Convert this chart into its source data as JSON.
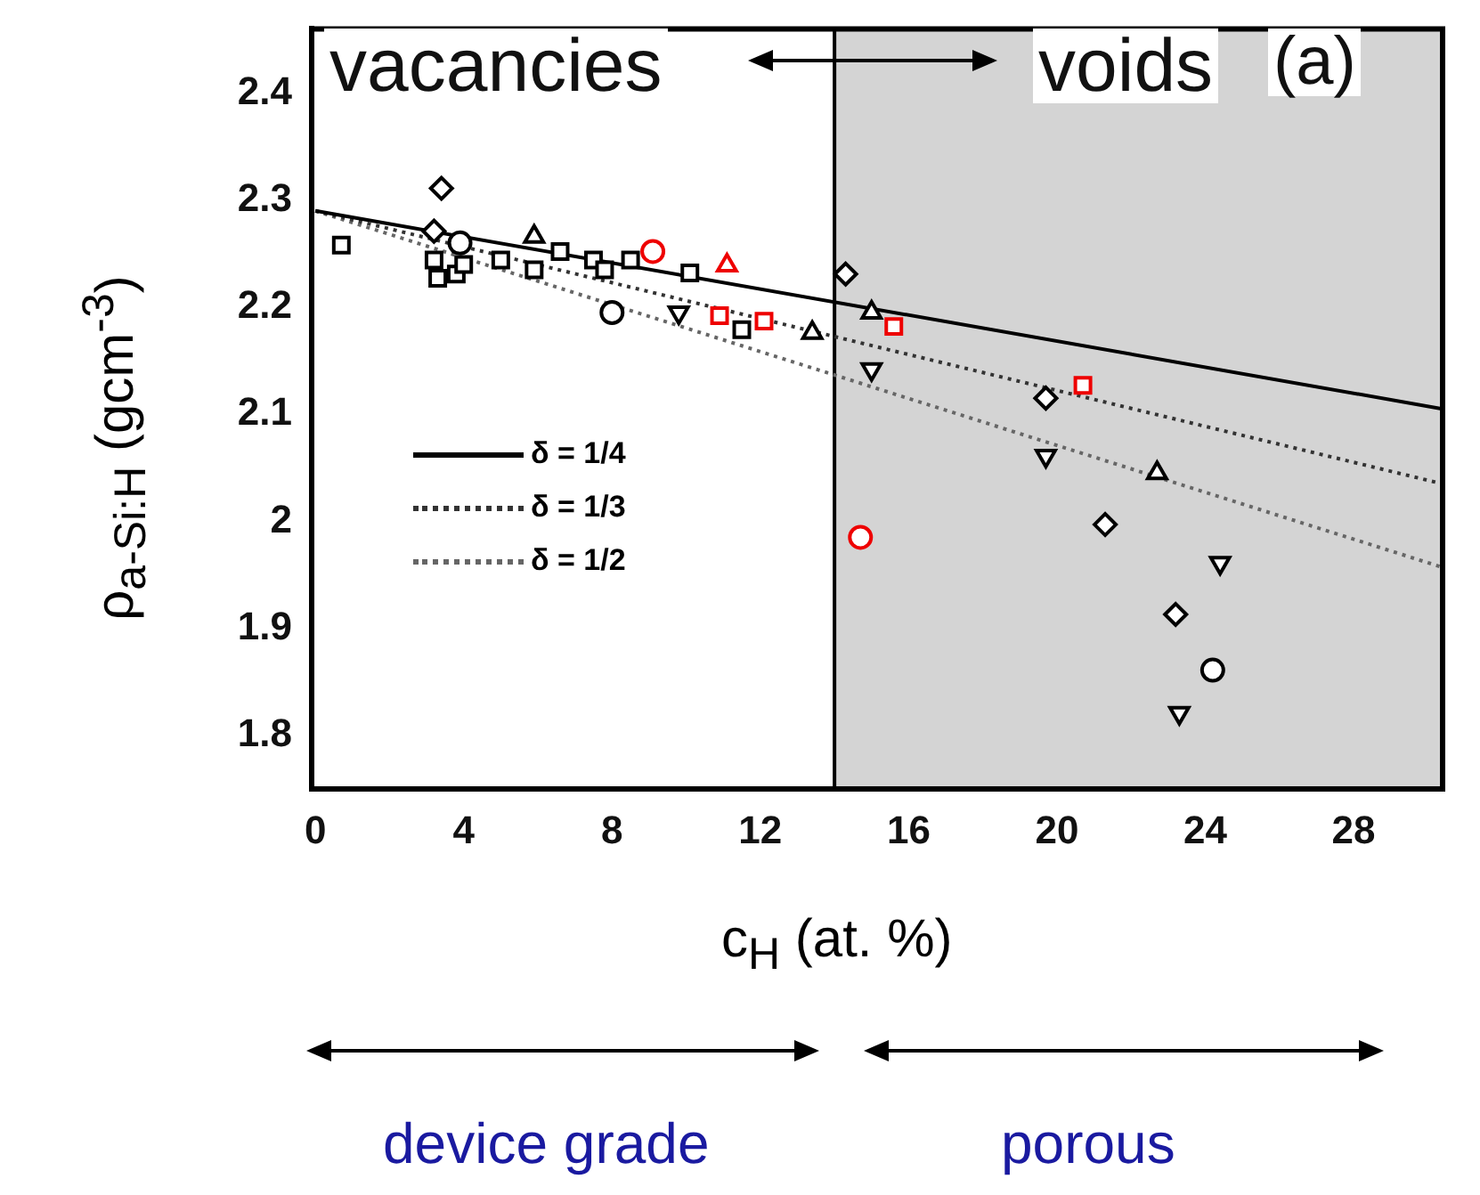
{
  "chart_data": {
    "type": "scatter",
    "xlabel": "c$_{H}$ (at. %)",
    "ylabel": "ρ$_{a-Si:H}$ (gcm$^{-3}$)",
    "xlim": [
      -0.1,
      30.4
    ],
    "ylim": [
      1.75,
      2.46
    ],
    "xticks": [
      0,
      4,
      8,
      12,
      16,
      20,
      24,
      28
    ],
    "yticks": [
      1.8,
      1.9,
      2.0,
      2.1,
      2.2,
      2.3,
      2.4
    ],
    "grid": false,
    "legend": "left",
    "series": [
      {
        "type": "line",
        "name": "δ = 1/4",
        "color": "#000000",
        "line_style": "solid",
        "marker": "none",
        "x": [
          0,
          30.4
        ],
        "values": [
          2.29,
          2.105
        ]
      },
      {
        "type": "line",
        "name": "δ = 1/3",
        "color": "#333333",
        "line_style": "dotted",
        "marker": "none",
        "x": [
          0,
          30.4
        ],
        "values": [
          2.29,
          2.035
        ]
      },
      {
        "type": "line",
        "name": "δ = 1/2",
        "color": "#666666",
        "line_style": "dotted",
        "marker": "none",
        "x": [
          0,
          30.4
        ],
        "values": [
          2.29,
          1.957
        ]
      },
      {
        "color": "#000000",
        "marker": "square",
        "x": [
          0.7,
          3.2,
          3.3,
          3.8,
          4.0,
          5.0,
          5.9,
          6.6,
          7.5,
          7.8,
          8.5,
          10.1,
          11.5
        ],
        "values": [
          2.258,
          2.244,
          2.227,
          2.231,
          2.24,
          2.244,
          2.235,
          2.252,
          2.244,
          2.235,
          2.244,
          2.232,
          2.179
        ]
      },
      {
        "color": "#000000",
        "marker": "diamond",
        "x": [
          3.4,
          3.2,
          14.3,
          19.7,
          21.3,
          23.2
        ],
        "values": [
          2.311,
          2.271,
          2.231,
          2.115,
          1.997,
          1.913
        ]
      },
      {
        "color": "#000000",
        "marker": "triangle",
        "x": [
          5.9,
          13.4,
          15.0,
          22.7
        ],
        "values": [
          2.266,
          2.176,
          2.195,
          2.045
        ]
      },
      {
        "color": "#000000",
        "marker": "triangle-down",
        "x": [
          9.8,
          15.0,
          19.7,
          24.4,
          23.3
        ],
        "values": [
          2.195,
          2.142,
          2.061,
          1.961,
          1.821
        ]
      },
      {
        "color": "#000000",
        "marker": "circle",
        "x": [
          3.9,
          8.0,
          24.2
        ],
        "values": [
          2.26,
          2.195,
          1.861
        ]
      },
      {
        "color": "#ee0000",
        "marker": "circle",
        "x": [
          9.1,
          14.7
        ],
        "values": [
          2.252,
          1.985
        ]
      },
      {
        "color": "#ee0000",
        "marker": "square",
        "x": [
          10.9,
          12.1,
          15.6,
          20.7
        ],
        "values": [
          2.192,
          2.187,
          2.182,
          2.127
        ]
      },
      {
        "color": "#ee0000",
        "marker": "triangle",
        "x": [
          11.1
        ],
        "values": [
          2.239
        ]
      }
    ],
    "ref_lines": [
      {
        "axis": "x",
        "value": 14,
        "color": "#000000"
      }
    ],
    "bands": [
      {
        "axis": "x",
        "from": 14,
        "to": 30.4,
        "color": "#d4d4d4"
      }
    ],
    "annotations": [
      "vacancies",
      "voids",
      "(a)",
      "device grade",
      "porous"
    ]
  }
}
